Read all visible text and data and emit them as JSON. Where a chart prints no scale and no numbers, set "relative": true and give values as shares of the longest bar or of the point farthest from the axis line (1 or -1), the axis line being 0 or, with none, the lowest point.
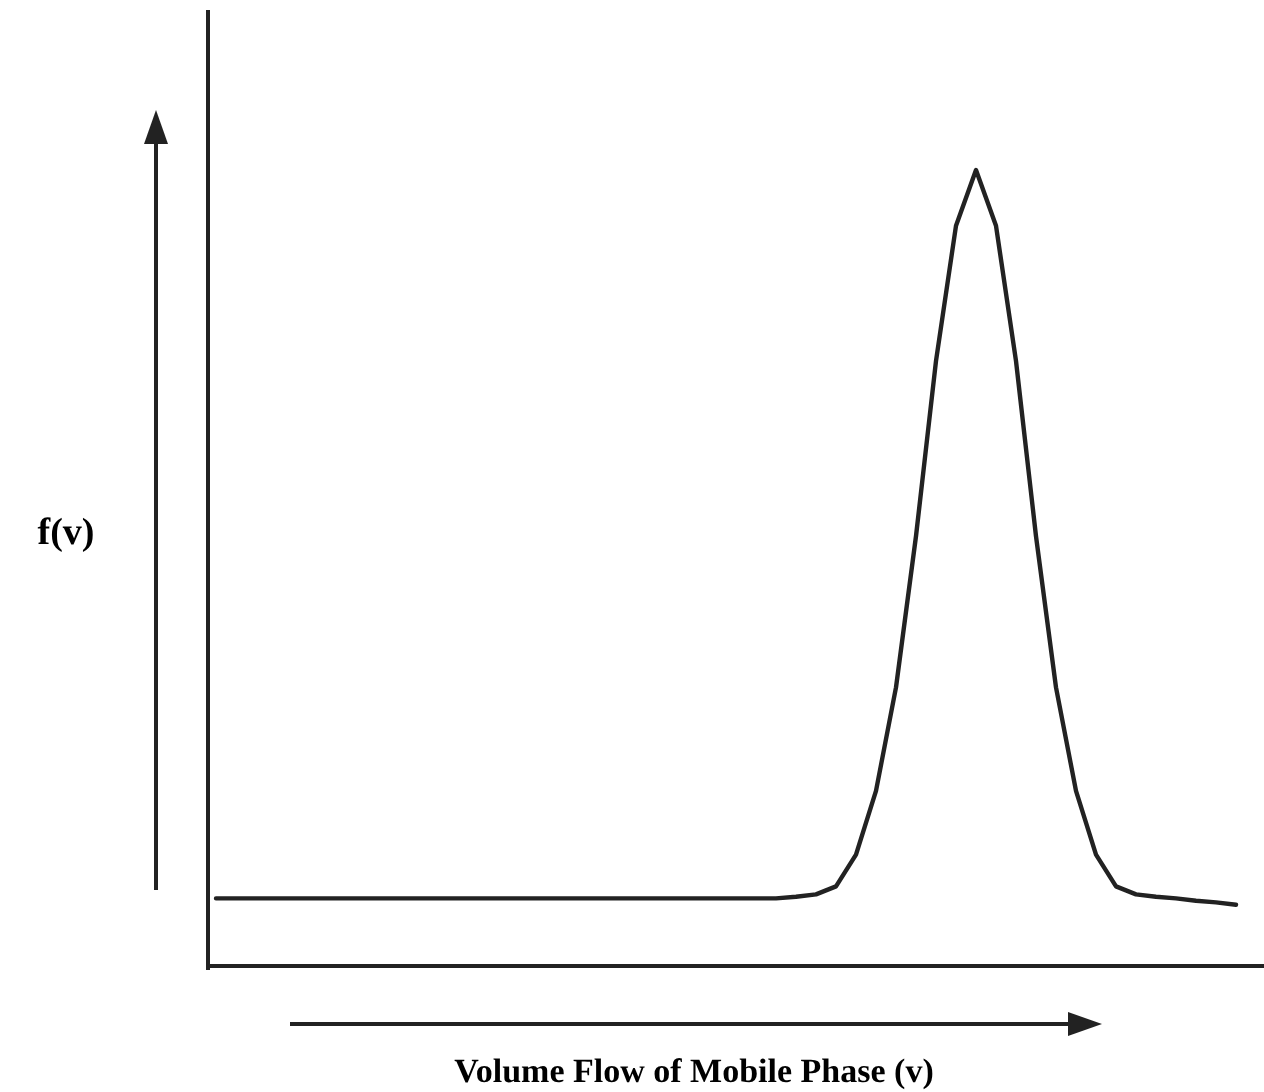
{
  "chart_data": {
    "type": "line",
    "relative": true,
    "xlabel": "Volume Flow of Mobile Phase (v)",
    "ylabel": "f(v)",
    "line_style": "solid",
    "categories": [
      null,
      null,
      null,
      null,
      null,
      null,
      null,
      null,
      null,
      null,
      null,
      null,
      null,
      null,
      null,
      null,
      null,
      null,
      null,
      null,
      null,
      null,
      null,
      null,
      null,
      null,
      null,
      null,
      null,
      null,
      null,
      null,
      null,
      null,
      null,
      null,
      null,
      null,
      null,
      null,
      null,
      null,
      null,
      null,
      null,
      null,
      null,
      null,
      null,
      null,
      null,
      null
    ],
    "series": [
      {
        "color": "#222222",
        "values": [
          0.085,
          0.085,
          0.085,
          0.085,
          0.085,
          0.085,
          0.085,
          0.085,
          0.085,
          0.085,
          0.085,
          0.085,
          0.085,
          0.085,
          0.085,
          0.085,
          0.085,
          0.085,
          0.085,
          0.085,
          0.085,
          0.085,
          0.085,
          0.085,
          0.085,
          0.085,
          0.085,
          0.085,
          0.085,
          0.087,
          0.09,
          0.1,
          0.14,
          0.22,
          0.35,
          0.54,
          0.76,
          0.93,
          1,
          0.93,
          0.76,
          0.54,
          0.35,
          0.22,
          0.14,
          0.1,
          0.09,
          0.087,
          0.085,
          0.082,
          0.08,
          0.077
        ]
      }
    ]
  }
}
